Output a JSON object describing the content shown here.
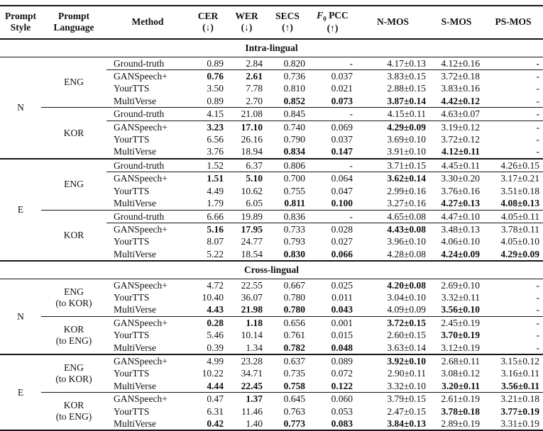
{
  "table": {
    "columns": [
      {
        "id": "style",
        "line1": "Prompt",
        "line2": "Style"
      },
      {
        "id": "lang",
        "line1": "Prompt",
        "line2": "Language"
      },
      {
        "id": "method",
        "line1": "Method"
      },
      {
        "id": "cer",
        "line1": "CER",
        "line2": "(↓)"
      },
      {
        "id": "wer",
        "line1": "WER",
        "line2": "(↓)"
      },
      {
        "id": "secs",
        "line1": "SECS",
        "line2": "(↑)"
      },
      {
        "id": "f0pcc",
        "line1": "F0 PCC",
        "line2": "(↑)",
        "f0_parts": {
          "italic": "F",
          "sub": "0",
          "rest": " PCC"
        }
      },
      {
        "id": "nmos",
        "line1": "N-MOS"
      },
      {
        "id": "smos",
        "line1": "S-MOS"
      },
      {
        "id": "psmos",
        "line1": "PS-MOS"
      }
    ],
    "sections": [
      {
        "title": "Intra-lingual",
        "style_groups": [
          {
            "style": "N",
            "language_groups": [
              {
                "language": [
                  "ENG"
                ],
                "rows": [
                  {
                    "method": "Ground-truth",
                    "values": [
                      "0.89",
                      "2.84",
                      "0.820",
                      "-",
                      "4.17±0.13",
                      "4.12±0.16",
                      "-"
                    ],
                    "bold": [],
                    "rule_after": true
                  },
                  {
                    "method": "GANSpeech+",
                    "values": [
                      "0.76",
                      "2.61",
                      "0.736",
                      "0.037",
                      "3.83±0.15",
                      "3.72±0.18",
                      "-"
                    ],
                    "bold": [
                      0,
                      1
                    ]
                  },
                  {
                    "method": "YourTTS",
                    "values": [
                      "3.50",
                      "7.78",
                      "0.810",
                      "0.021",
                      "2.88±0.15",
                      "3.83±0.16",
                      "-"
                    ],
                    "bold": []
                  },
                  {
                    "method": "MultiVerse",
                    "values": [
                      "0.89",
                      "2.70",
                      "0.852",
                      "0.073",
                      "3.87±0.14",
                      "4.42±0.12",
                      "-"
                    ],
                    "bold": [
                      2,
                      3,
                      4,
                      5
                    ]
                  }
                ]
              },
              {
                "language": [
                  "KOR"
                ],
                "rows": [
                  {
                    "method": "Ground-truth",
                    "values": [
                      "4.15",
                      "21.08",
                      "0.845",
                      "-",
                      "4.15±0.11",
                      "4.63±0.07",
                      "-"
                    ],
                    "bold": [],
                    "rule_after": true
                  },
                  {
                    "method": "GANSpeech+",
                    "values": [
                      "3.23",
                      "17.10",
                      "0.740",
                      "0.069",
                      "4.29±0.09",
                      "3.19±0.12",
                      "-"
                    ],
                    "bold": [
                      0,
                      1,
                      4
                    ]
                  },
                  {
                    "method": "YourTTS",
                    "values": [
                      "6.56",
                      "26.16",
                      "0.790",
                      "0.037",
                      "3.69±0.10",
                      "3.72±0.12",
                      "-"
                    ],
                    "bold": []
                  },
                  {
                    "method": "MultiVerse",
                    "values": [
                      "3.76",
                      "18.94",
                      "0.834",
                      "0.147",
                      "3.91±0.10",
                      "4.12±0.11",
                      "-"
                    ],
                    "bold": [
                      2,
                      3,
                      5
                    ]
                  }
                ]
              }
            ]
          },
          {
            "style": "E",
            "language_groups": [
              {
                "language": [
                  "ENG"
                ],
                "rows": [
                  {
                    "method": "Ground-truth",
                    "values": [
                      "1.52",
                      "6.37",
                      "0.806",
                      "-",
                      "3.71±0.15",
                      "4.45±0.11",
                      "4.26±0.15"
                    ],
                    "bold": [],
                    "rule_after": true
                  },
                  {
                    "method": "GANSpeech+",
                    "values": [
                      "1.51",
                      "5.10",
                      "0.700",
                      "0.064",
                      "3.62±0.14",
                      "3.30±0.20",
                      "3.17±0.21"
                    ],
                    "bold": [
                      0,
                      1,
                      4
                    ]
                  },
                  {
                    "method": "YourTTS",
                    "values": [
                      "4.49",
                      "10.62",
                      "0.755",
                      "0.047",
                      "2.99±0.16",
                      "3.76±0.16",
                      "3.51±0.18"
                    ],
                    "bold": []
                  },
                  {
                    "method": "MultiVerse",
                    "values": [
                      "1.79",
                      "6.05",
                      "0.811",
                      "0.100",
                      "3.27±0.16",
                      "4.27±0.13",
                      "4.08±0.13"
                    ],
                    "bold": [
                      2,
                      3,
                      5,
                      6
                    ]
                  }
                ]
              },
              {
                "language": [
                  "KOR"
                ],
                "rows": [
                  {
                    "method": "Ground-truth",
                    "values": [
                      "6.66",
                      "19.89",
                      "0.836",
                      "-",
                      "4.65±0.08",
                      "4.47±0.10",
                      "4.05±0.11"
                    ],
                    "bold": [],
                    "rule_after": true
                  },
                  {
                    "method": "GANSpeech+",
                    "values": [
                      "5.16",
                      "17.95",
                      "0.733",
                      "0.028",
                      "4.43±0.08",
                      "3.48±0.13",
                      "3.78±0.11"
                    ],
                    "bold": [
                      0,
                      1,
                      4
                    ]
                  },
                  {
                    "method": "YourTTS",
                    "values": [
                      "8.07",
                      "24.77",
                      "0.793",
                      "0.027",
                      "3.96±0.10",
                      "4.06±0.10",
                      "4.05±0.10"
                    ],
                    "bold": []
                  },
                  {
                    "method": "MultiVerse",
                    "values": [
                      "5.22",
                      "18.54",
                      "0.830",
                      "0.066",
                      "4.28±0.08",
                      "4.24±0.09",
                      "4.29±0.09"
                    ],
                    "bold": [
                      2,
                      3,
                      5,
                      6
                    ]
                  }
                ]
              }
            ]
          }
        ]
      },
      {
        "title": "Cross-lingual",
        "style_groups": [
          {
            "style": "N",
            "language_groups": [
              {
                "language": [
                  "ENG",
                  "(to KOR)"
                ],
                "rows": [
                  {
                    "method": "GANSpeech+",
                    "values": [
                      "4.72",
                      "22.55",
                      "0.667",
                      "0.025",
                      "4.20±0.08",
                      "2.69±0.10",
                      "-"
                    ],
                    "bold": [
                      4
                    ]
                  },
                  {
                    "method": "YourTTS",
                    "values": [
                      "10.40",
                      "36.07",
                      "0.780",
                      "0.011",
                      "3.04±0.10",
                      "3.32±0.11",
                      "-"
                    ],
                    "bold": []
                  },
                  {
                    "method": "MultiVerse",
                    "values": [
                      "4.43",
                      "21.98",
                      "0.780",
                      "0.043",
                      "4.09±0.09",
                      "3.56±0.10",
                      "-"
                    ],
                    "bold": [
                      0,
                      1,
                      2,
                      3,
                      5
                    ]
                  }
                ]
              },
              {
                "language": [
                  "KOR",
                  "(to ENG)"
                ],
                "rows": [
                  {
                    "method": "GANSpeech+",
                    "values": [
                      "0.28",
                      "1.18",
                      "0.656",
                      "0.001",
                      "3.72±0.15",
                      "2.45±0.19",
                      "-"
                    ],
                    "bold": [
                      0,
                      1,
                      4
                    ]
                  },
                  {
                    "method": "YourTTS",
                    "values": [
                      "5.46",
                      "10.14",
                      "0.761",
                      "0.015",
                      "2.60±0.15",
                      "3.70±0.19",
                      "-"
                    ],
                    "bold": [
                      5
                    ]
                  },
                  {
                    "method": "MultiVerse",
                    "values": [
                      "0.39",
                      "1.34",
                      "0.782",
                      "0.048",
                      "3.63±0.14",
                      "3.12±0.19",
                      "-"
                    ],
                    "bold": [
                      2,
                      3
                    ]
                  }
                ]
              }
            ]
          },
          {
            "style": "E",
            "language_groups": [
              {
                "language": [
                  "ENG",
                  "(to KOR)"
                ],
                "rows": [
                  {
                    "method": "GANSpeech+",
                    "values": [
                      "4.99",
                      "23.28",
                      "0.637",
                      "0.089",
                      "3.92±0.10",
                      "2.68±0.11",
                      "3.15±0.12"
                    ],
                    "bold": [
                      4
                    ]
                  },
                  {
                    "method": "YourTTS",
                    "values": [
                      "10.22",
                      "34.71",
                      "0.735",
                      "0.072",
                      "2.90±0.11",
                      "3.08±0.12",
                      "3.16±0.11"
                    ],
                    "bold": []
                  },
                  {
                    "method": "MultiVerse",
                    "values": [
                      "4.44",
                      "22.45",
                      "0.758",
                      "0.122",
                      "3.32±0.10",
                      "3.20±0.11",
                      "3.56±0.11"
                    ],
                    "bold": [
                      0,
                      1,
                      2,
                      3,
                      5,
                      6
                    ]
                  }
                ]
              },
              {
                "language": [
                  "KOR",
                  "(to ENG)"
                ],
                "rows": [
                  {
                    "method": "GANSpeech+",
                    "values": [
                      "0.47",
                      "1.37",
                      "0.645",
                      "0.060",
                      "3.79±0.15",
                      "2.61±0.19",
                      "3.21±0.18"
                    ],
                    "bold": [
                      1
                    ]
                  },
                  {
                    "method": "YourTTS",
                    "values": [
                      "6.31",
                      "11.46",
                      "0.763",
                      "0.053",
                      "2.47±0.15",
                      "3.78±0.18",
                      "3.77±0.19"
                    ],
                    "bold": [
                      5,
                      6
                    ]
                  },
                  {
                    "method": "MultiVerse",
                    "values": [
                      "0.42",
                      "1.40",
                      "0.773",
                      "0.083",
                      "3.84±0.13",
                      "2.89±0.19",
                      "3.31±0.19"
                    ],
                    "bold": [
                      0,
                      2,
                      3,
                      4
                    ]
                  }
                ]
              }
            ]
          }
        ]
      }
    ]
  }
}
